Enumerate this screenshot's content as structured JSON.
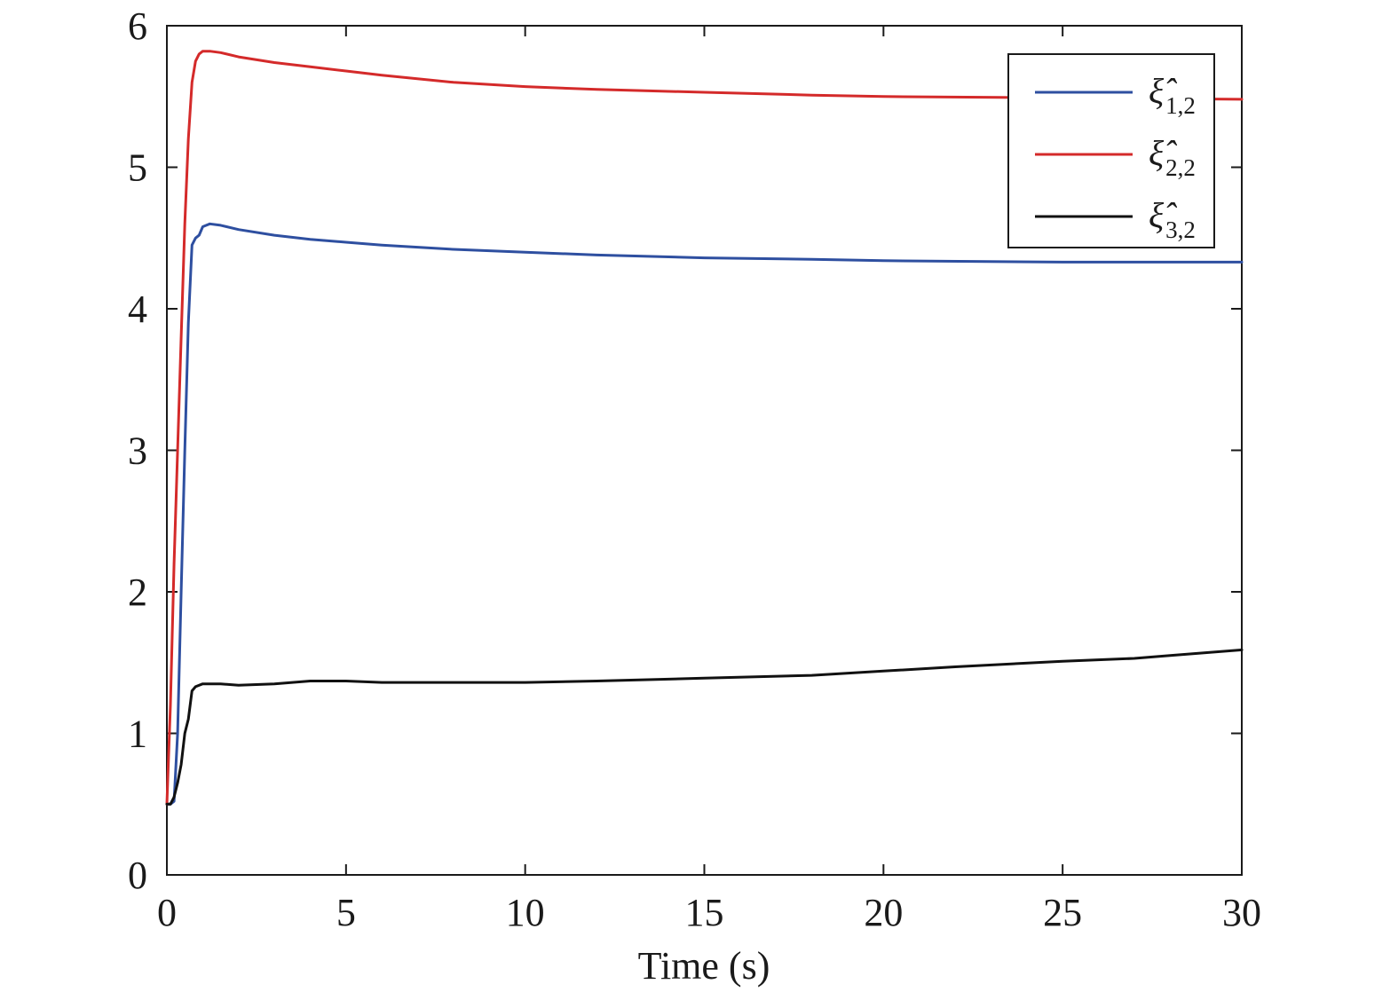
{
  "chart_data": {
    "type": "line",
    "title": "",
    "xlabel": "Time (s)",
    "ylabel": "",
    "xlim": [
      0,
      30
    ],
    "ylim": [
      0,
      6
    ],
    "xticks": [
      0,
      5,
      10,
      15,
      20,
      25,
      30
    ],
    "yticks": [
      0,
      1,
      2,
      3,
      4,
      5,
      6
    ],
    "xtick_labels": [
      "0",
      "5",
      "10",
      "15",
      "20",
      "25",
      "30"
    ],
    "ytick_labels": [
      "0",
      "1",
      "2",
      "3",
      "4",
      "5",
      "6"
    ],
    "grid": false,
    "legend_position": "top-right",
    "series": [
      {
        "name": "ξ̂1,2",
        "symbol": "ξ̂",
        "subscript": "1,2",
        "color": "#2E4FA0",
        "x": [
          0,
          0.1,
          0.2,
          0.3,
          0.4,
          0.5,
          0.6,
          0.7,
          0.8,
          0.9,
          1.0,
          1.2,
          1.5,
          2,
          3,
          4,
          5,
          6,
          8,
          10,
          12,
          15,
          18,
          20,
          25,
          30
        ],
        "y": [
          0.5,
          0.5,
          0.52,
          1.0,
          2.0,
          3.0,
          3.9,
          4.45,
          4.5,
          4.52,
          4.58,
          4.6,
          4.59,
          4.56,
          4.52,
          4.49,
          4.47,
          4.45,
          4.42,
          4.4,
          4.38,
          4.36,
          4.35,
          4.34,
          4.33,
          4.33
        ]
      },
      {
        "name": "ξ̂2,2",
        "symbol": "ξ̂",
        "subscript": "2,2",
        "color": "#D42A2A",
        "x": [
          0,
          0.1,
          0.2,
          0.3,
          0.4,
          0.5,
          0.6,
          0.7,
          0.8,
          0.9,
          1.0,
          1.2,
          1.5,
          2,
          3,
          4,
          5,
          6,
          8,
          10,
          12,
          15,
          18,
          20,
          25,
          30
        ],
        "y": [
          0.5,
          1.2,
          2.2,
          3.0,
          3.8,
          4.6,
          5.2,
          5.6,
          5.75,
          5.8,
          5.82,
          5.82,
          5.81,
          5.78,
          5.74,
          5.71,
          5.68,
          5.65,
          5.6,
          5.57,
          5.55,
          5.53,
          5.51,
          5.5,
          5.49,
          5.48
        ]
      },
      {
        "name": "ξ̂3,2",
        "symbol": "ξ̂",
        "subscript": "3,2",
        "color": "#111111",
        "x": [
          0,
          0.1,
          0.2,
          0.3,
          0.4,
          0.5,
          0.6,
          0.7,
          0.8,
          1.0,
          1.5,
          2,
          3,
          4,
          4.5,
          5,
          6,
          8,
          10,
          12,
          15,
          18,
          20,
          22,
          25,
          27,
          28,
          30
        ],
        "y": [
          0.5,
          0.5,
          0.55,
          0.65,
          0.78,
          1.0,
          1.1,
          1.3,
          1.33,
          1.35,
          1.35,
          1.34,
          1.35,
          1.37,
          1.37,
          1.37,
          1.36,
          1.36,
          1.36,
          1.37,
          1.39,
          1.41,
          1.44,
          1.47,
          1.51,
          1.53,
          1.55,
          1.59
        ]
      }
    ]
  }
}
